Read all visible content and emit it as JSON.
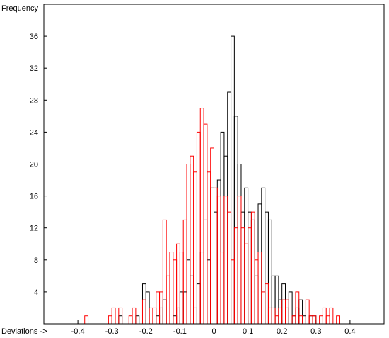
{
  "chart_data": {
    "type": "bar",
    "title": "",
    "ylabel": "Frequency",
    "xlabel": "Deviations ->",
    "xlim": [
      -0.5,
      0.5
    ],
    "ylim": [
      0,
      40
    ],
    "x_ticks": [
      "-0.4",
      "-0.3",
      "-0.2",
      "-0.1",
      "0",
      "0.1",
      "0.2",
      "0.3",
      "0.4"
    ],
    "x_tick_values": [
      -0.4,
      -0.3,
      -0.2,
      -0.1,
      0,
      0.1,
      0.2,
      0.3,
      0.4
    ],
    "y_ticks": [
      "4",
      "8",
      "12",
      "16",
      "20",
      "24",
      "28",
      "32",
      "36"
    ],
    "y_tick_values": [
      4,
      8,
      12,
      16,
      20,
      24,
      28,
      32,
      36
    ],
    "grid": false,
    "bin_width": 0.01,
    "colors": {
      "series_1": "#000000",
      "series_2": "#ff0000"
    },
    "series": [
      {
        "style": "step-outline",
        "color": "#000000",
        "bins_start": -0.3,
        "bins_end": 0.31,
        "values": [
          0,
          0,
          1,
          0,
          0,
          0,
          0,
          1,
          0,
          5,
          4,
          0,
          0,
          1,
          2,
          3,
          0,
          0,
          1,
          2,
          4,
          4,
          8,
          6,
          2,
          5,
          9,
          13,
          8,
          17,
          14,
          18,
          24,
          21,
          29,
          36,
          26,
          20,
          14,
          17,
          14,
          13,
          6,
          15,
          17,
          14,
          13,
          6,
          6,
          3,
          5,
          2,
          4,
          1,
          2,
          3,
          1,
          0,
          1,
          1,
          0
        ]
      },
      {
        "style": "step-outline",
        "color": "#ff0000",
        "bins_start": -0.38,
        "bins_end": 0.37,
        "values": [
          1,
          0,
          0,
          0,
          0,
          0,
          0,
          1,
          2,
          0,
          2,
          0,
          0,
          1,
          2,
          0,
          0,
          3,
          0,
          2,
          2,
          4,
          4,
          13,
          6,
          9,
          8,
          10,
          9,
          13,
          20,
          21,
          19,
          24,
          27,
          25,
          19,
          22,
          17,
          16,
          9,
          16,
          14,
          8,
          12,
          16,
          12,
          10,
          12,
          14,
          8,
          9,
          4,
          5,
          2,
          2,
          1,
          2,
          3,
          3,
          0,
          1,
          4,
          1,
          0,
          3,
          1,
          1,
          0,
          1,
          2,
          1,
          2,
          0,
          1
        ]
      }
    ]
  }
}
